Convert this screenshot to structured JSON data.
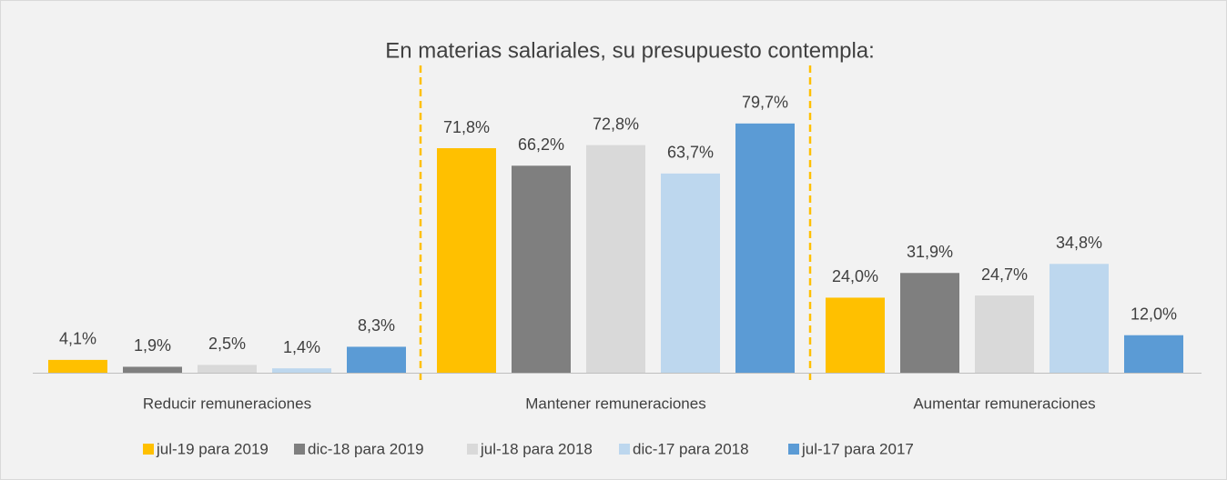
{
  "chart_data": {
    "type": "bar",
    "title": "En materias salariales, su presupuesto contempla:",
    "categories": [
      "Reducir remuneraciones",
      "Mantener remuneraciones",
      "Aumentar remuneraciones"
    ],
    "series": [
      {
        "name": "jul-19 para 2019",
        "color": "#ffc000",
        "values": [
          4.1,
          71.8,
          24.0
        ],
        "value_labels": [
          "4,1%",
          "71,8%",
          "24,0%"
        ]
      },
      {
        "name": "dic-18 para 2019",
        "color": "#7f7f7f",
        "values": [
          1.9,
          66.2,
          31.9
        ],
        "value_labels": [
          "1,9%",
          "66,2%",
          "31,9%"
        ]
      },
      {
        "name": "jul-18 para 2018",
        "color": "#d9d9d9",
        "values": [
          2.5,
          72.8,
          24.7
        ],
        "value_labels": [
          "2,5%",
          "72,8%",
          "24,7%"
        ]
      },
      {
        "name": "dic-17 para 2018",
        "color": "#bdd7ee",
        "values": [
          1.4,
          63.7,
          34.8
        ],
        "value_labels": [
          "1,4%",
          "63,7%",
          "34,8%"
        ]
      },
      {
        "name": "jul-17 para 2017",
        "color": "#5b9bd5",
        "values": [
          8.3,
          79.7,
          12.0
        ],
        "value_labels": [
          "8,3%",
          "79,7%",
          "12,0%"
        ]
      }
    ],
    "legend": "bottom"
  }
}
